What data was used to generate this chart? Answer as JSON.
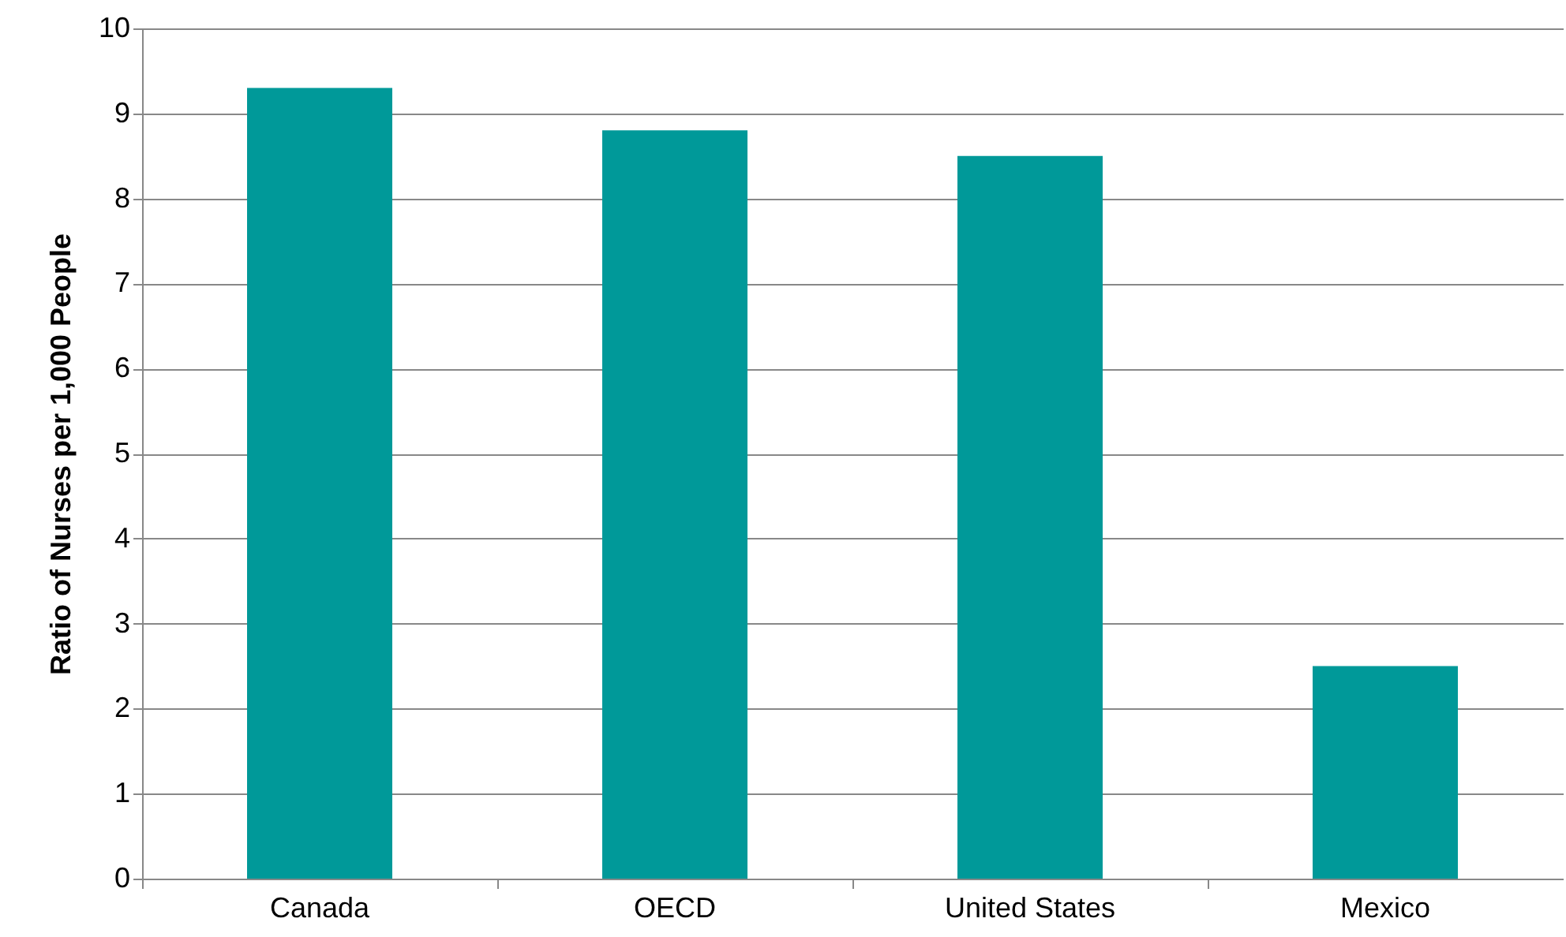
{
  "chart_data": {
    "type": "bar",
    "ylabel": "Ratio of Nurses per 1,000 People",
    "categories": [
      "Canada",
      "OECD",
      "United States",
      "Mexico"
    ],
    "values": [
      9.3,
      8.8,
      8.5,
      2.5
    ],
    "color": "#009999",
    "ylim": [
      0,
      10
    ],
    "yticks": [
      0,
      1,
      2,
      3,
      4,
      5,
      6,
      7,
      8,
      9,
      10
    ],
    "grid": "y"
  }
}
